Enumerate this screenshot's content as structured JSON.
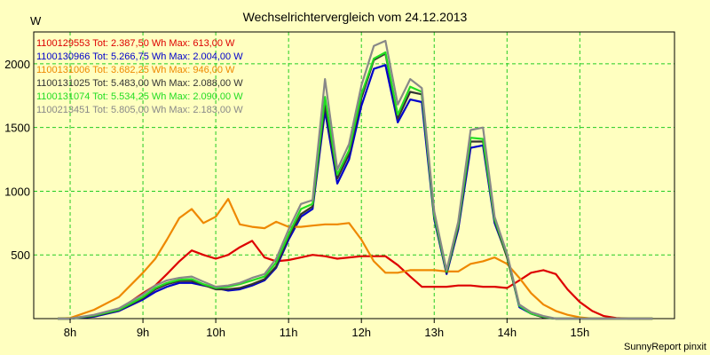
{
  "chart_data": {
    "type": "line",
    "title": "Wechselrichtervergleich vom 24.12.2013",
    "ylabel": "W",
    "xlabel": "",
    "credit": "SunnyReport pinxit",
    "ylim": [
      0,
      2250
    ],
    "xlim": [
      7.5,
      16.3
    ],
    "grid": true,
    "legend_position": "top-left",
    "yticks": [
      500,
      1000,
      1500,
      2000
    ],
    "xticks": [
      {
        "value": 8,
        "label": "8h"
      },
      {
        "value": 9,
        "label": "9h"
      },
      {
        "value": 10,
        "label": "10h"
      },
      {
        "value": 11,
        "label": "11h"
      },
      {
        "value": 12,
        "label": "12h"
      },
      {
        "value": 13,
        "label": "13h"
      },
      {
        "value": 14,
        "label": "14h"
      },
      {
        "value": 15,
        "label": "15h"
      }
    ],
    "x": [
      7.83,
      8.0,
      8.33,
      8.67,
      9.0,
      9.17,
      9.33,
      9.5,
      9.67,
      9.83,
      10.0,
      10.17,
      10.33,
      10.5,
      10.67,
      10.83,
      11.0,
      11.17,
      11.33,
      11.5,
      11.67,
      11.83,
      12.0,
      12.17,
      12.33,
      12.5,
      12.67,
      12.83,
      13.0,
      13.17,
      13.33,
      13.5,
      13.67,
      13.83,
      14.0,
      14.17,
      14.33,
      14.5,
      14.67,
      14.83,
      15.0,
      15.17,
      15.33,
      15.5,
      15.67,
      15.83,
      16.0
    ],
    "series": [
      {
        "name": "1100129553 Tot: 2.387,50 Wh Max: 613,00 W",
        "color": "#dd0000",
        "values": [
          0,
          0,
          20,
          70,
          200,
          260,
          350,
          450,
          535,
          500,
          470,
          500,
          560,
          610,
          480,
          450,
          460,
          480,
          500,
          490,
          470,
          480,
          490,
          490,
          490,
          420,
          330,
          250,
          250,
          250,
          260,
          260,
          250,
          250,
          240,
          300,
          360,
          380,
          350,
          230,
          130,
          60,
          20,
          5,
          0,
          0,
          0
        ]
      },
      {
        "name": "1100130966 Tot: 5.266,75 Wh Max: 2.004,00 W",
        "color": "#0000cc",
        "values": [
          0,
          0,
          15,
          60,
          150,
          210,
          250,
          280,
          280,
          260,
          240,
          220,
          230,
          260,
          300,
          400,
          620,
          800,
          860,
          1630,
          1060,
          1250,
          1670,
          1960,
          1990,
          1540,
          1720,
          1700,
          780,
          350,
          700,
          1340,
          1360,
          750,
          490,
          90,
          40,
          10,
          0,
          0,
          0,
          0,
          0,
          0,
          0,
          0,
          0
        ]
      },
      {
        "name": "1100131006 Tot: 3.682,25 Wh Max: 946,00 W",
        "color": "#ee8800",
        "values": [
          0,
          5,
          70,
          170,
          360,
          470,
          620,
          790,
          860,
          750,
          800,
          940,
          740,
          720,
          710,
          760,
          720,
          720,
          730,
          740,
          740,
          750,
          620,
          450,
          360,
          360,
          380,
          380,
          380,
          370,
          370,
          430,
          450,
          480,
          430,
          320,
          200,
          110,
          60,
          30,
          10,
          0,
          0,
          0,
          0,
          0,
          0
        ]
      },
      {
        "name": "1100131025 Tot: 5.483,00 Wh Max: 2.088,00 W",
        "color": "#333333",
        "values": [
          0,
          0,
          20,
          65,
          160,
          230,
          270,
          295,
          295,
          265,
          230,
          230,
          240,
          270,
          310,
          410,
          640,
          820,
          880,
          1680,
          1100,
          1290,
          1730,
          2030,
          2080,
          1570,
          1780,
          1760,
          800,
          360,
          720,
          1390,
          1390,
          770,
          480,
          100,
          40,
          10,
          0,
          0,
          0,
          0,
          0,
          0,
          0,
          0,
          0
        ]
      },
      {
        "name": "1100131074 Tot: 5.534,25 Wh Max: 2.090,00 W",
        "color": "#22dd22",
        "values": [
          0,
          0,
          25,
          70,
          170,
          240,
          280,
          305,
          310,
          270,
          240,
          250,
          270,
          300,
          330,
          440,
          660,
          860,
          900,
          1740,
          1130,
          1320,
          1760,
          2040,
          2090,
          1600,
          1820,
          1780,
          810,
          370,
          740,
          1420,
          1410,
          780,
          500,
          100,
          40,
          15,
          0,
          0,
          0,
          0,
          0,
          0,
          0,
          0,
          0
        ]
      },
      {
        "name": "1100213451 Tot: 5.805,00 Wh Max: 2.183,00 W",
        "color": "#888888",
        "values": [
          0,
          0,
          30,
          80,
          190,
          260,
          300,
          320,
          330,
          290,
          250,
          260,
          280,
          320,
          350,
          470,
          700,
          900,
          930,
          1880,
          1170,
          1370,
          1830,
          2140,
          2180,
          1680,
          1880,
          1810,
          840,
          380,
          760,
          1480,
          1500,
          800,
          510,
          110,
          50,
          20,
          0,
          0,
          0,
          0,
          0,
          0,
          0,
          0,
          0
        ]
      }
    ]
  }
}
